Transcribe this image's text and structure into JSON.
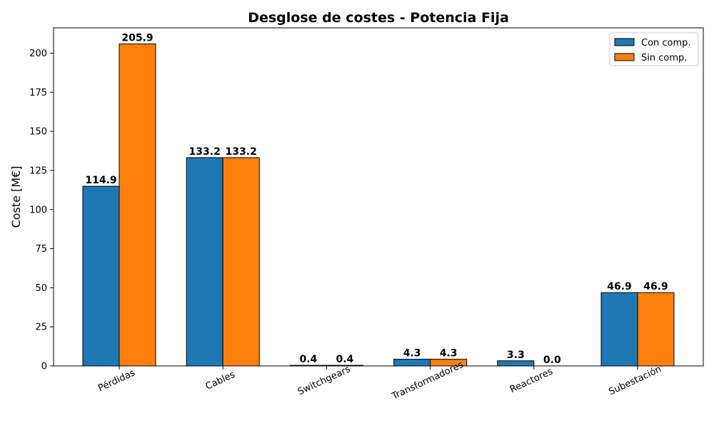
{
  "chart_data": {
    "type": "bar",
    "title": "Desglose de costes - Potencia Fija",
    "xlabel": "",
    "ylabel": "Coste [M€]",
    "categories": [
      "Pérdidas",
      "Cables",
      "Switchgears",
      "Transformadores",
      "Reactores",
      "Subestación"
    ],
    "series": [
      {
        "name": "Con comp.",
        "color": "#1f77b4",
        "values": [
          114.9,
          133.2,
          0.4,
          4.3,
          3.3,
          46.9
        ]
      },
      {
        "name": "Sin comp.",
        "color": "#ff7f0e",
        "values": [
          205.9,
          133.2,
          0.4,
          4.3,
          0.0,
          46.9
        ]
      }
    ],
    "ylim": [
      0,
      216.2
    ],
    "yticks": [
      0,
      25,
      50,
      75,
      100,
      125,
      150,
      175,
      200
    ],
    "grid": false,
    "legend_position": "top-right",
    "data_labels_format": "one decimal"
  }
}
